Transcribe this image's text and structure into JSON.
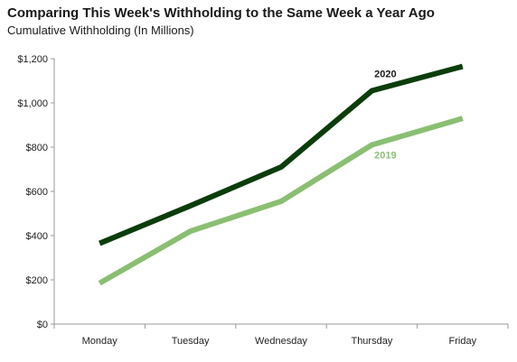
{
  "chart_data": {
    "type": "line",
    "title": "Comparing This Week's Withholding to the Same Week a Year Ago",
    "subtitle": "Cumulative Withholding (In Millions)",
    "xlabel": "",
    "ylabel": "",
    "categories": [
      "Monday",
      "Tuesday",
      "Wednesday",
      "Thursday",
      "Friday"
    ],
    "ylim": [
      0,
      1200
    ],
    "y_ticks": [
      0,
      200,
      400,
      600,
      800,
      1000,
      1200
    ],
    "y_tick_labels": [
      "$0",
      "$200",
      "$400",
      "$600",
      "$800",
      "$1,000",
      "$1,200"
    ],
    "grid": false,
    "legend": "none",
    "series": [
      {
        "name": "2020",
        "values": [
          365,
          535,
          710,
          1055,
          1165
        ],
        "color": "#0b3d0b",
        "label_at": "Thursday"
      },
      {
        "name": "2019",
        "values": [
          185,
          420,
          555,
          810,
          930
        ],
        "color": "#8abf72",
        "label_at": "Thursday"
      }
    ]
  }
}
